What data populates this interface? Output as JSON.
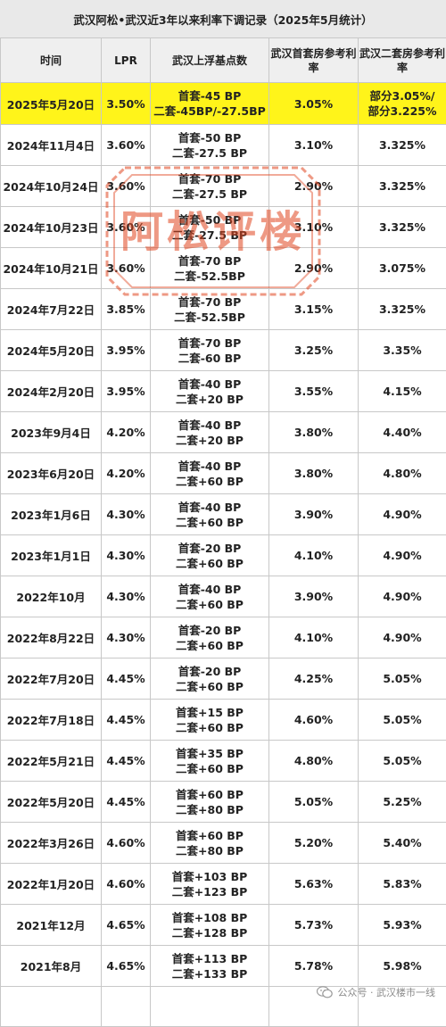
{
  "title": "武汉阿松•武汉近3年以来利率下调记录（2025年5月统计）",
  "columns": [
    "时间",
    "LPR",
    "武汉上浮基点数",
    "武汉首套房参考利率",
    "武汉二套房参考利率"
  ],
  "rows": [
    {
      "date": "2025年5月20日",
      "lpr": "3.50%",
      "bp1": "首套-45 BP",
      "bp2": "二套-45BP/-27.5BP",
      "first": "3.05%",
      "second_a": "部分3.05%/",
      "second_b": "部分3.225%",
      "highlight": true
    },
    {
      "date": "2024年11月4日",
      "lpr": "3.60%",
      "bp1": "首套-50 BP",
      "bp2": "二套-27.5 BP",
      "first": "3.10%",
      "second": "3.325%"
    },
    {
      "date": "2024年10月24日",
      "lpr": "3.60%",
      "bp1": "首套-70 BP",
      "bp2": "二套-27.5 BP",
      "first": "2.90%",
      "second": "3.325%"
    },
    {
      "date": "2024年10月23日",
      "lpr": "3.60%",
      "bp1": "首套-50 BP",
      "bp2": "二套-27.5 BP",
      "first": "3.10%",
      "second": "3.325%"
    },
    {
      "date": "2024年10月21日",
      "lpr": "3.60%",
      "bp1": "首套-70 BP",
      "bp2": "二套-52.5BP",
      "first": "2.90%",
      "second": "3.075%"
    },
    {
      "date": "2024年7月22日",
      "lpr": "3.85%",
      "bp1": "首套-70 BP",
      "bp2": "二套-52.5BP",
      "first": "3.15%",
      "second": "3.325%"
    },
    {
      "date": "2024年5月20日",
      "lpr": "3.95%",
      "bp1": "首套-70 BP",
      "bp2": "二套-60 BP",
      "first": "3.25%",
      "second": "3.35%"
    },
    {
      "date": "2024年2月20日",
      "lpr": "3.95%",
      "bp1": "首套-40 BP",
      "bp2": "二套+20 BP",
      "first": "3.55%",
      "second": "4.15%"
    },
    {
      "date": "2023年9月4日",
      "lpr": "4.20%",
      "bp1": "首套-40 BP",
      "bp2": "二套+20 BP",
      "first": "3.80%",
      "second": "4.40%"
    },
    {
      "date": "2023年6月20日",
      "lpr": "4.20%",
      "bp1": "首套-40 BP",
      "bp2": "二套+60 BP",
      "first": "3.80%",
      "second": "4.80%"
    },
    {
      "date": "2023年1月6日",
      "lpr": "4.30%",
      "bp1": "首套-40 BP",
      "bp2": "二套+60 BP",
      "first": "3.90%",
      "second": "4.90%"
    },
    {
      "date": "2023年1月1日",
      "lpr": "4.30%",
      "bp1": "首套-20 BP",
      "bp2": "二套+60 BP",
      "first": "4.10%",
      "second": "4.90%"
    },
    {
      "date": "2022年10月",
      "lpr": "4.30%",
      "bp1": "首套-40 BP",
      "bp2": "二套+60 BP",
      "first": "3.90%",
      "second": "4.90%"
    },
    {
      "date": "2022年8月22日",
      "lpr": "4.30%",
      "bp1": "首套-20 BP",
      "bp2": "二套+60 BP",
      "first": "4.10%",
      "second": "4.90%"
    },
    {
      "date": "2022年7月20日",
      "lpr": "4.45%",
      "bp1": "首套-20 BP",
      "bp2": "二套+60 BP",
      "first": "4.25%",
      "second": "5.05%"
    },
    {
      "date": "2022年7月18日",
      "lpr": "4.45%",
      "bp1": "首套+15 BP",
      "bp2": "二套+60 BP",
      "first": "4.60%",
      "second": "5.05%"
    },
    {
      "date": "2022年5月21日",
      "lpr": "4.45%",
      "bp1": "首套+35 BP",
      "bp2": "二套+60 BP",
      "first": "4.80%",
      "second": "5.05%"
    },
    {
      "date": "2022年5月20日",
      "lpr": "4.45%",
      "bp1": "首套+60 BP",
      "bp2": "二套+80 BP",
      "first": "5.05%",
      "second": "5.25%"
    },
    {
      "date": "2022年3月26日",
      "lpr": "4.60%",
      "bp1": "首套+60 BP",
      "bp2": "二套+80 BP",
      "first": "5.20%",
      "second": "5.40%"
    },
    {
      "date": "2022年1月20日",
      "lpr": "4.60%",
      "bp1": "首套+103 BP",
      "bp2": "二套+123 BP",
      "first": "5.63%",
      "second": "5.83%"
    },
    {
      "date": "2021年12月",
      "lpr": "4.65%",
      "bp1": "首套+108 BP",
      "bp2": "二套+128 BP",
      "first": "5.73%",
      "second": "5.93%"
    },
    {
      "date": "2021年8月",
      "lpr": "4.65%",
      "bp1": "首套+113 BP",
      "bp2": "二套+133 BP",
      "first": "5.78%",
      "second": "5.98%"
    }
  ],
  "watermark": "阿松评楼",
  "footer": "公众号 · 武汉楼市一线",
  "colors": {
    "highlight": "#fff41a",
    "rate_red": "#d8232a",
    "stamp": "#e0451f",
    "header_bg": "#efefef"
  },
  "icons": {
    "footer": "wechat-icon"
  }
}
